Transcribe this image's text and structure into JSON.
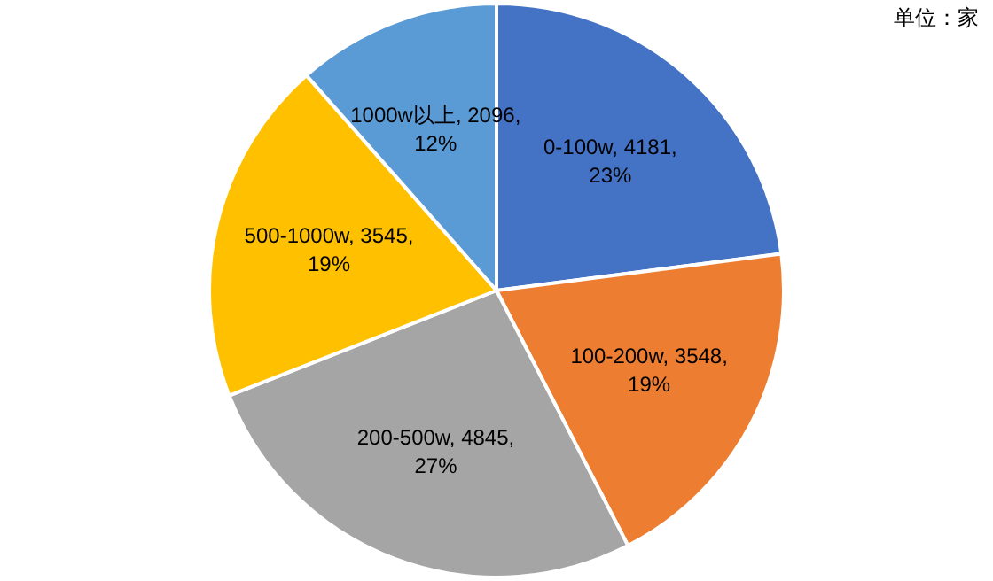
{
  "chart_data": {
    "type": "pie",
    "categories": [
      "0-100w",
      "100-200w",
      "200-500w",
      "500-1000w",
      "1000w以上"
    ],
    "values": [
      4181,
      3548,
      4845,
      3545,
      2096
    ],
    "colors": [
      "#4472c4",
      "#ed7d31",
      "#a5a5a5",
      "#ffc000",
      "#5b9bd5"
    ],
    "value_labels": [
      "4181, 23%",
      "3548, 19%",
      "4845, 27%",
      "3545, 19%",
      "2096, 12%"
    ],
    "annotations": [
      "单位：家"
    ],
    "legend": false
  }
}
